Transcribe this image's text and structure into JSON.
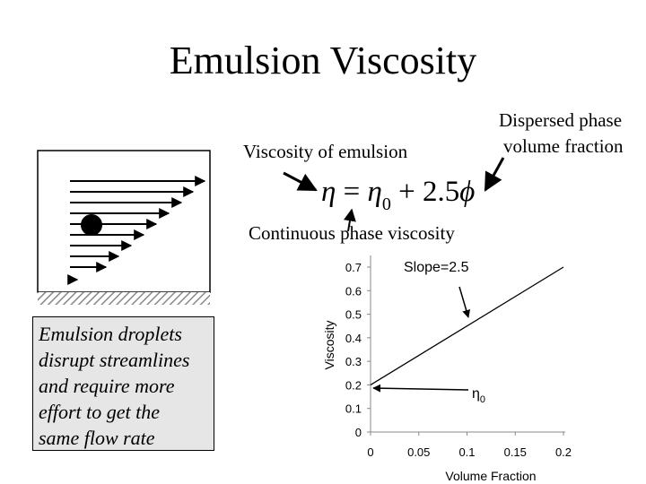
{
  "title": "Emulsion Viscosity",
  "labels": {
    "viscosity_of_emulsion": "Viscosity of emulsion",
    "dispersed_phase": [
      "Dispersed phase",
      "volume fraction"
    ],
    "continuous_phase": "Continuous phase viscosity"
  },
  "equation": {
    "eta": "η",
    "equals": "=",
    "eta0": "η",
    "sub": "0",
    "plus": "+",
    "coef": "2.5",
    "phi": "ϕ"
  },
  "caption": {
    "lines": [
      "Emulsion droplets",
      "disrupt streamlines",
      "and require more",
      "effort to get the",
      "same flow rate"
    ]
  },
  "chart_data": {
    "type": "line",
    "x": [
      0,
      0.2
    ],
    "y": [
      0.2,
      0.7
    ],
    "xlabel": "Volume Fraction",
    "ylabel": "Viscosity",
    "xlim": [
      0,
      0.2
    ],
    "ylim": [
      0,
      0.7
    ],
    "xticks": [
      "0",
      "0.05",
      "0.1",
      "0.15",
      "0.2"
    ],
    "yticks": [
      "0",
      "0.1",
      "0.2",
      "0.3",
      "0.4",
      "0.5",
      "0.6",
      "0.7"
    ],
    "annotations": {
      "slope": "Slope=2.5",
      "eta0": "η",
      "eta0_sub": "0"
    }
  }
}
